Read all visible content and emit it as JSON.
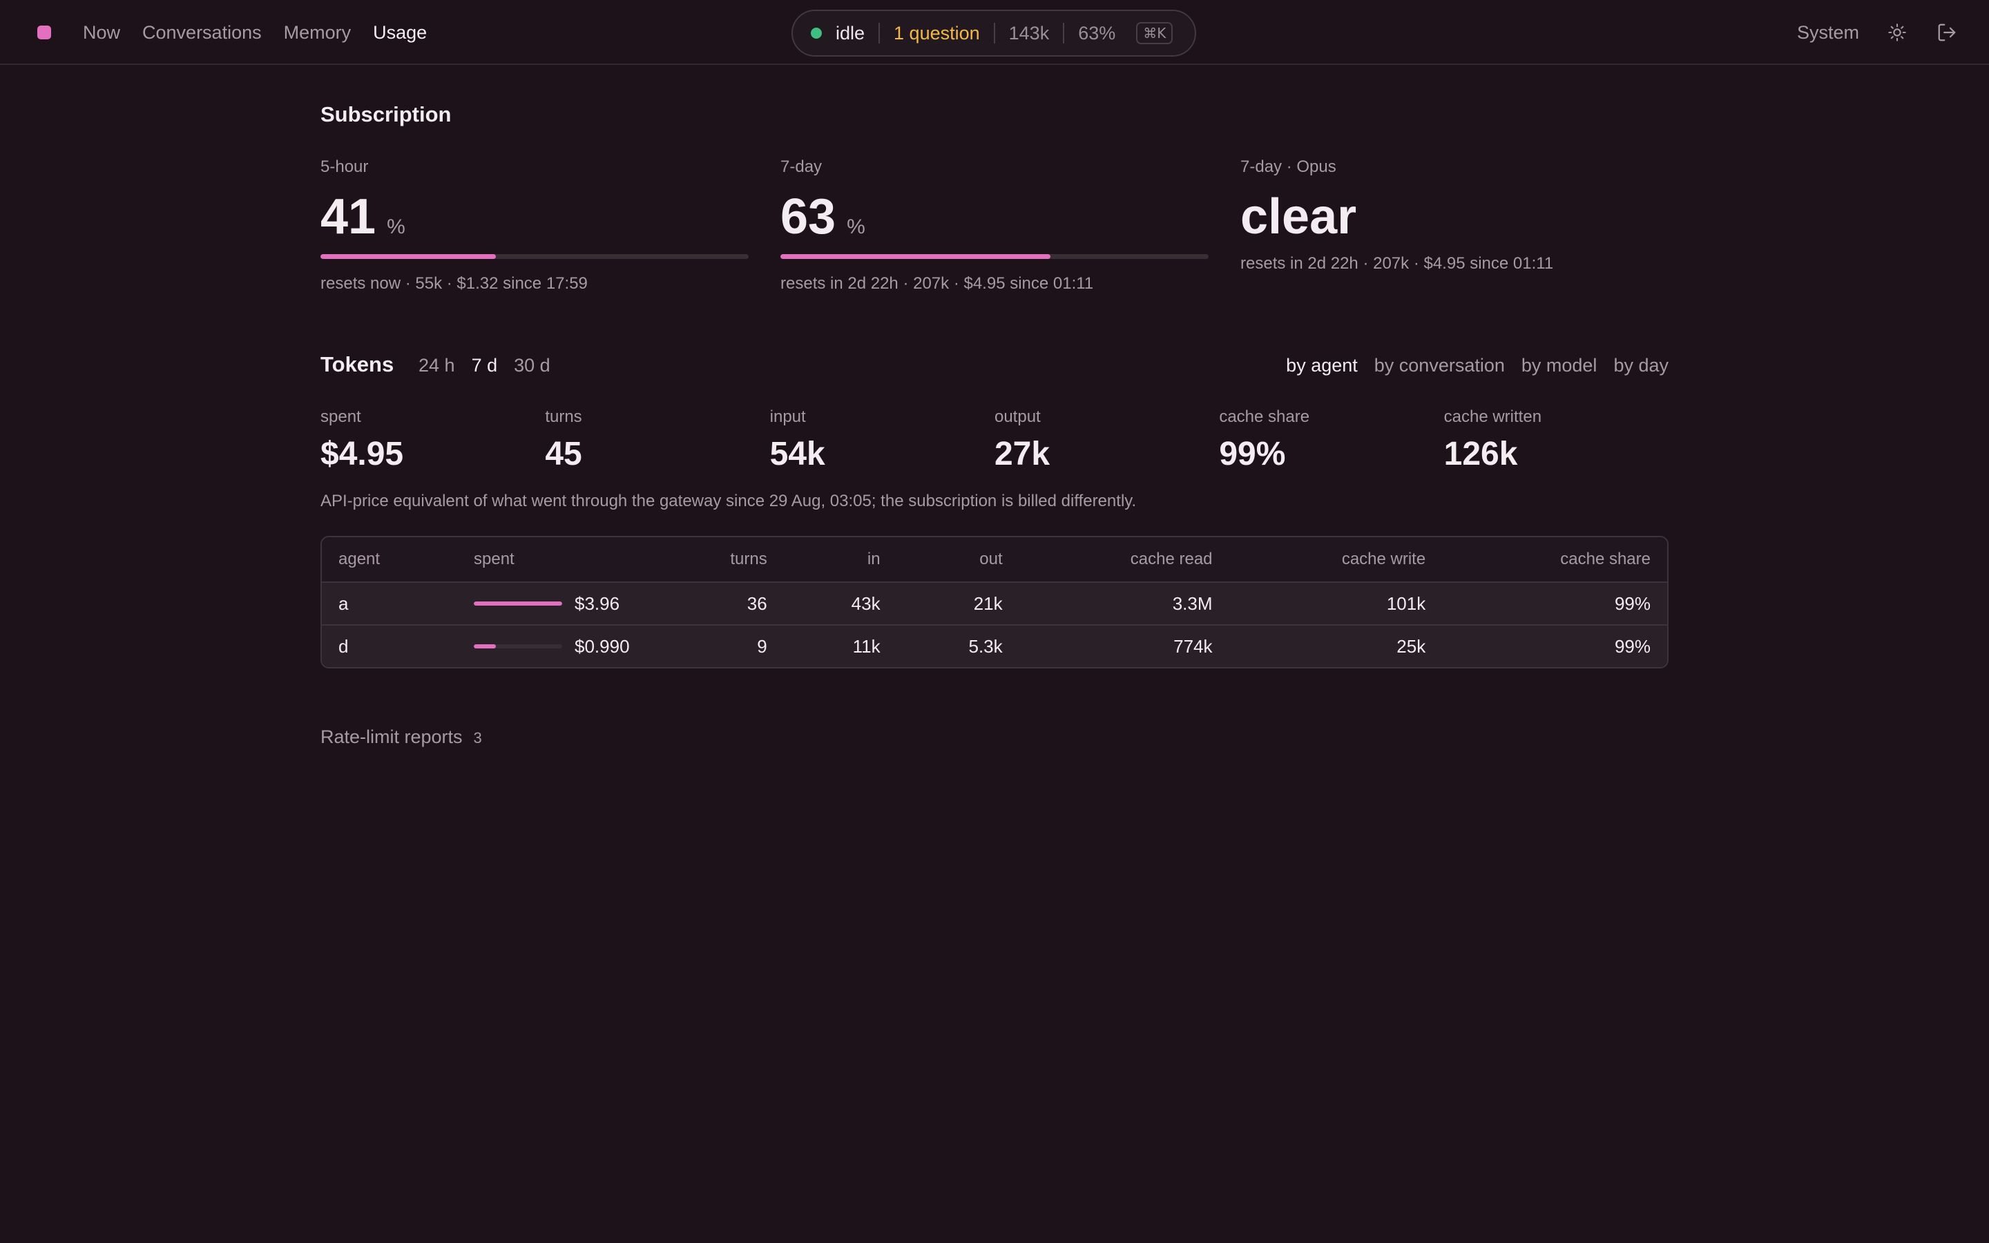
{
  "nav": {
    "items": [
      {
        "label": "Now",
        "active": false
      },
      {
        "label": "Conversations",
        "active": false
      },
      {
        "label": "Memory",
        "active": false
      },
      {
        "label": "Usage",
        "active": true
      }
    ],
    "theme_label": "System"
  },
  "status": {
    "state": "idle",
    "questions": "1 question",
    "tokens": "143k",
    "percent": "63%",
    "shortcut": "⌘K"
  },
  "subscription": {
    "title": "Subscription",
    "five_hour": {
      "label": "5-hour",
      "value": "41",
      "unit": "%",
      "fill_percent": 41,
      "sub": "resets now · 55k · $1.32 since 17:59"
    },
    "seven_day": {
      "label": "7-day",
      "value": "63",
      "unit": "%",
      "fill_percent": 63,
      "sub": "resets in 2d 22h · 207k · $4.95 since 01:11"
    },
    "seven_day_opus": {
      "label": "7-day · Opus",
      "value": "clear",
      "sub": "resets in 2d 22h · 207k · $4.95 since 01:11"
    }
  },
  "tokens": {
    "title": "Tokens",
    "ranges": [
      {
        "label": "24 h",
        "active": false
      },
      {
        "label": "7 d",
        "active": true
      },
      {
        "label": "30 d",
        "active": false
      }
    ],
    "groupings": [
      {
        "label": "by agent",
        "active": true
      },
      {
        "label": "by conversation",
        "active": false
      },
      {
        "label": "by model",
        "active": false
      },
      {
        "label": "by day",
        "active": false
      }
    ],
    "stats": [
      {
        "label": "spent",
        "value": "$4.95"
      },
      {
        "label": "turns",
        "value": "45"
      },
      {
        "label": "input",
        "value": "54k"
      },
      {
        "label": "output",
        "value": "27k"
      },
      {
        "label": "cache share",
        "value": "99%"
      },
      {
        "label": "cache written",
        "value": "126k"
      }
    ],
    "note": "API-price equivalent of what went through the gateway since 29 Aug, 03:05; the subscription is billed differently."
  },
  "table": {
    "columns": [
      "agent",
      "spent",
      "turns",
      "in",
      "out",
      "cache read",
      "cache write",
      "cache share"
    ],
    "rows": [
      {
        "agent": "a",
        "spent": "$3.96",
        "spent_fraction": 1.0,
        "turns": "36",
        "in": "43k",
        "out": "21k",
        "cache_read": "3.3M",
        "cache_write": "101k",
        "cache_share": "99%"
      },
      {
        "agent": "d",
        "spent": "$0.990",
        "spent_fraction": 0.25,
        "turns": "9",
        "in": "11k",
        "out": "5.3k",
        "cache_read": "774k",
        "cache_write": "25k",
        "cache_share": "99%"
      }
    ]
  },
  "rate_limit": {
    "label": "Rate-limit reports",
    "count": "3"
  },
  "colors": {
    "accent": "#e36fbf",
    "status_idle": "#3fbf7f",
    "question": "#f2b84b",
    "background": "#1d1219"
  },
  "icons": {
    "logo": "logo-square",
    "theme": "sun-icon",
    "logout": "logout-icon"
  }
}
